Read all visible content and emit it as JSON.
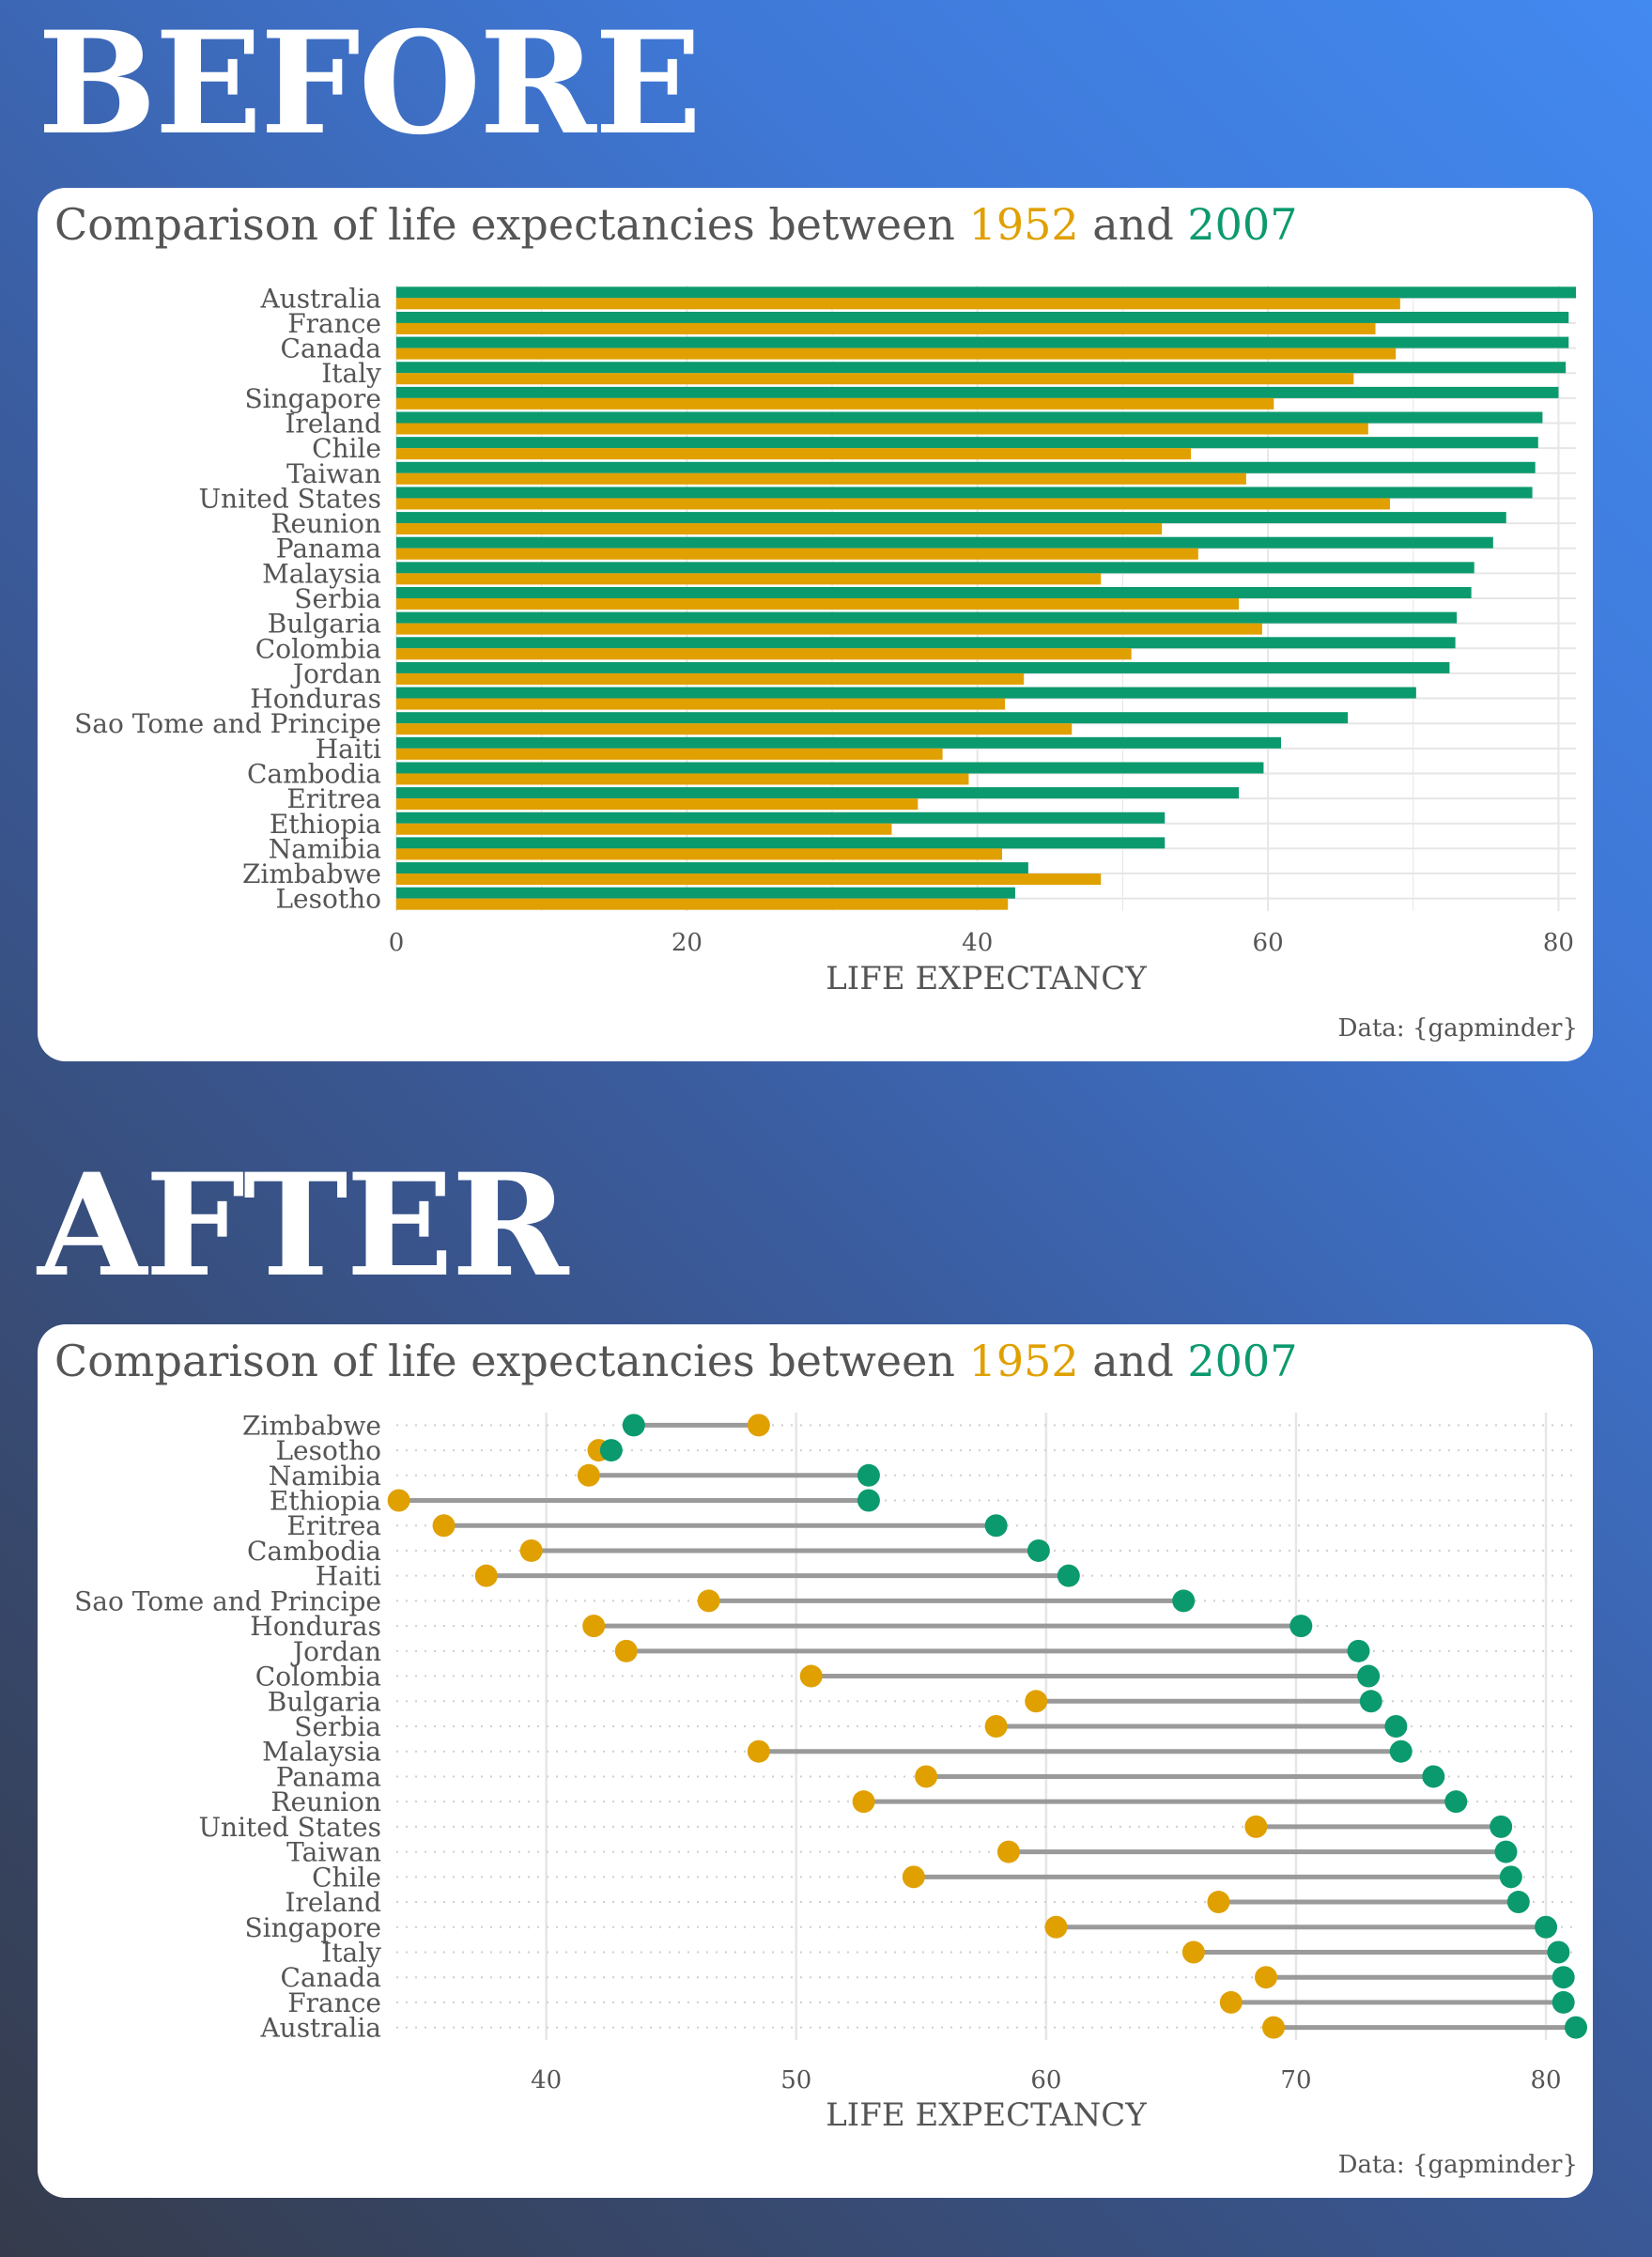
{
  "before": {
    "heading": "BEFORE",
    "title": {
      "prefix": "Comparison of life expectancies between",
      "year1": "1952",
      "connector": "and",
      "year2": "2007"
    },
    "source": "Data: {gapminder}"
  },
  "after": {
    "heading": "AFTER",
    "title": {
      "prefix": "Comparison of life expectancies between",
      "year1": "1952",
      "connector": "and",
      "year2": "2007"
    },
    "source": "Data: {gapminder}"
  },
  "colors": {
    "year1952": "#e0a000",
    "year2007": "#0b9a6e",
    "connector": "#9a9a9a",
    "grid": "#e6e6e6",
    "text": "#555555"
  },
  "chart_data": [
    {
      "type": "bar",
      "orientation": "horizontal",
      "title": "Comparison of life expectancies between 1952 and 2007",
      "xlabel": "LIFE EXPECTANCY",
      "xlim": [
        0,
        81.2
      ],
      "xticks": [
        0,
        20,
        40,
        60,
        80
      ],
      "legend": "none",
      "categories": [
        "Australia",
        "France",
        "Canada",
        "Italy",
        "Singapore",
        "Ireland",
        "Chile",
        "Taiwan",
        "United States",
        "Reunion",
        "Panama",
        "Malaysia",
        "Serbia",
        "Bulgaria",
        "Colombia",
        "Jordan",
        "Honduras",
        "Sao Tome and Principe",
        "Haiti",
        "Cambodia",
        "Eritrea",
        "Ethiopia",
        "Namibia",
        "Zimbabwe",
        "Lesotho"
      ],
      "series": [
        {
          "name": "2007",
          "values": [
            81.2,
            80.7,
            80.7,
            80.5,
            80.0,
            78.9,
            78.6,
            78.4,
            78.2,
            76.4,
            75.5,
            74.2,
            74.0,
            73.0,
            72.9,
            72.5,
            70.2,
            65.5,
            60.9,
            59.7,
            58.0,
            52.9,
            52.9,
            43.5,
            42.6
          ]
        },
        {
          "name": "1952",
          "values": [
            69.1,
            67.4,
            68.8,
            65.9,
            60.4,
            66.9,
            54.7,
            58.5,
            68.4,
            52.7,
            55.2,
            48.5,
            58.0,
            59.6,
            50.6,
            43.2,
            41.9,
            46.5,
            37.6,
            39.4,
            35.9,
            34.1,
            41.7,
            48.5,
            42.1
          ]
        }
      ]
    },
    {
      "type": "scatter",
      "subtype": "dumbbell",
      "title": "Comparison of life expectancies between 1952 and 2007",
      "xlabel": "LIFE EXPECTANCY",
      "xlim": [
        34,
        81.2
      ],
      "xticks": [
        40,
        50,
        60,
        70,
        80
      ],
      "legend": "none",
      "categories": [
        "Zimbabwe",
        "Lesotho",
        "Namibia",
        "Ethiopia",
        "Eritrea",
        "Cambodia",
        "Haiti",
        "Sao Tome and Principe",
        "Honduras",
        "Jordan",
        "Colombia",
        "Bulgaria",
        "Serbia",
        "Malaysia",
        "Panama",
        "Reunion",
        "United States",
        "Taiwan",
        "Chile",
        "Ireland",
        "Singapore",
        "Italy",
        "Canada",
        "France",
        "Australia"
      ],
      "series": [
        {
          "name": "1952",
          "values": [
            48.5,
            42.1,
            41.7,
            34.1,
            35.9,
            39.4,
            37.6,
            46.5,
            41.9,
            43.2,
            50.6,
            59.6,
            58.0,
            48.5,
            55.2,
            52.7,
            68.4,
            58.5,
            54.7,
            66.9,
            60.4,
            65.9,
            68.8,
            67.4,
            69.1
          ]
        },
        {
          "name": "2007",
          "values": [
            43.5,
            42.6,
            52.9,
            52.9,
            58.0,
            59.7,
            60.9,
            65.5,
            70.2,
            72.5,
            72.9,
            73.0,
            74.0,
            74.2,
            75.5,
            76.4,
            78.2,
            78.4,
            78.6,
            78.9,
            80.0,
            80.5,
            80.7,
            80.7,
            81.2
          ]
        }
      ]
    }
  ]
}
